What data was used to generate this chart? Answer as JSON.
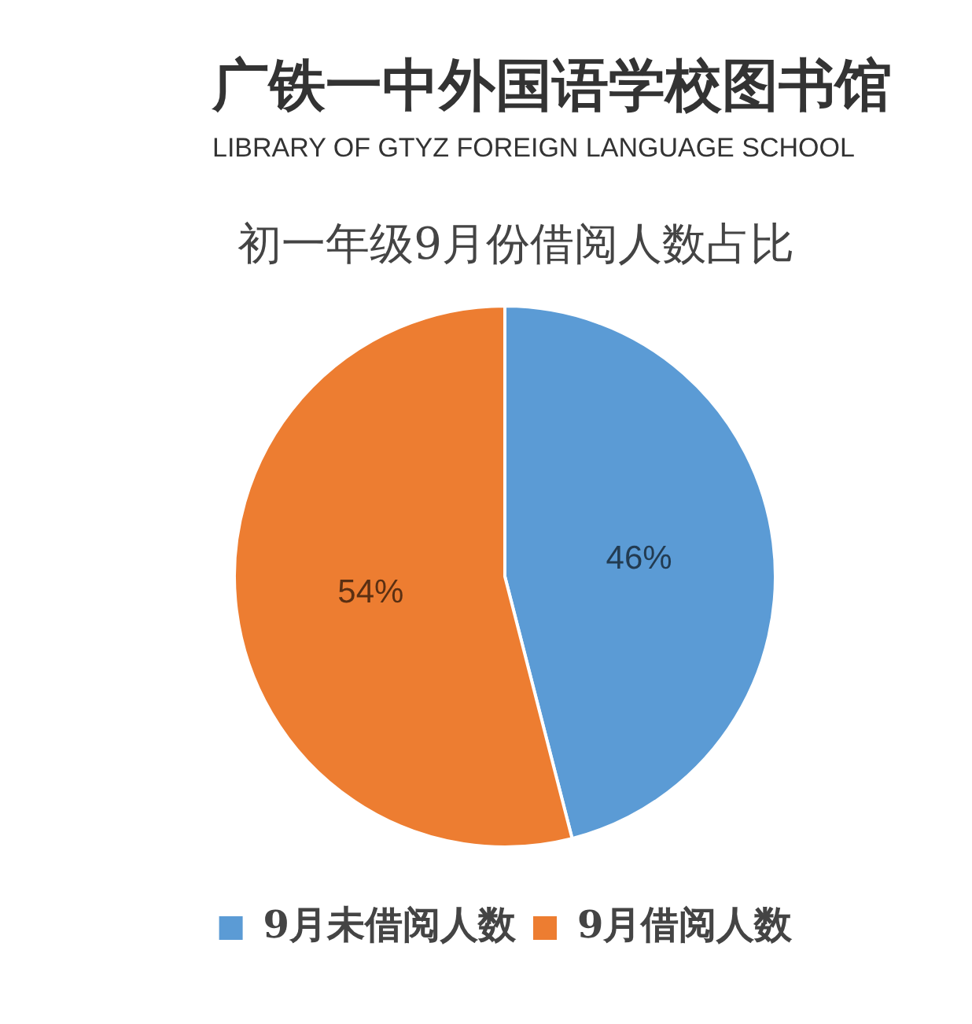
{
  "chart_data": {
    "type": "pie",
    "title": "初一年级9月份借阅人数占比",
    "annotations": [
      "广铁一中外国语学校图书馆",
      "LIBRARY OF GTYZ FOREIGN LANGUAGE SCHOOL"
    ],
    "categories": [
      "9月未借阅人数",
      "9月借阅人数"
    ],
    "values": [
      46,
      54
    ],
    "colors": [
      "#5b9bd5",
      "#ed7d31"
    ],
    "value_labels": [
      "46%",
      "54%"
    ],
    "legend": "bottom"
  }
}
